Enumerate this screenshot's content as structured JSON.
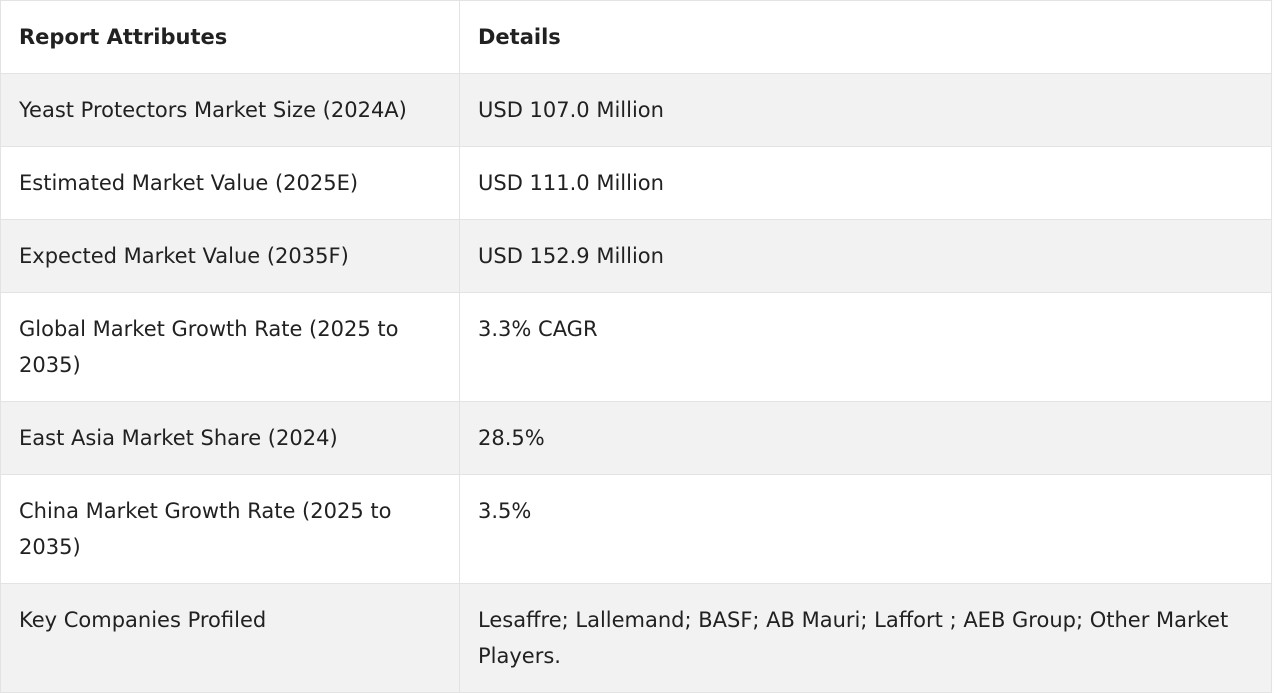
{
  "table": {
    "headers": [
      "Report Attributes",
      "Details"
    ],
    "rows": [
      {
        "attribute": "Yeast Protectors Market Size (2024A)",
        "detail": "USD 107.0 Million"
      },
      {
        "attribute": "Estimated Market Value (2025E)",
        "detail": "USD 111.0 Million"
      },
      {
        "attribute": "Expected Market Value (2035F)",
        "detail": "USD 152.9 Million"
      },
      {
        "attribute": "Global Market Growth Rate (2025 to 2035)",
        "detail": "3.3% CAGR"
      },
      {
        "attribute": "East Asia Market Share (2024)",
        "detail": "28.5%"
      },
      {
        "attribute": "China Market Growth Rate (2025 to 2035)",
        "detail": "3.5%"
      },
      {
        "attribute": "Key Companies Profiled",
        "detail": "Lesaffre; Lallemand; BASF; AB Mauri; Laffort ; AEB Group; Other Market Players."
      }
    ]
  }
}
